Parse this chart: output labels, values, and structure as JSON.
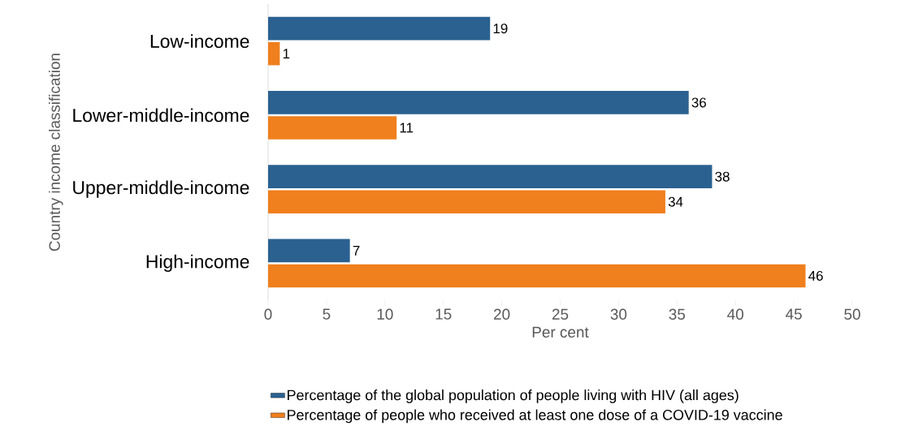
{
  "chart_data": {
    "type": "bar",
    "orientation": "horizontal",
    "ylabel": "Country income classification",
    "xlabel": "Per cent",
    "categories": [
      "Low-income",
      "Lower-middle-income",
      "Upper-middle-income",
      "High-income"
    ],
    "series": [
      {
        "name": "Percentage of the global population of people living with HIV (all ages)",
        "color": "#2a6190",
        "values": [
          19,
          36,
          38,
          7
        ]
      },
      {
        "name": "Percentage of people who received at least one dose of a COVID-19 vaccine",
        "color": "#f07f1d",
        "values": [
          1,
          11,
          34,
          46
        ]
      }
    ],
    "xlim": [
      0,
      50
    ],
    "xticks": [
      0,
      5,
      10,
      15,
      20,
      25,
      30,
      35,
      40,
      45,
      50
    ],
    "data_labels": true,
    "legend": "bottom",
    "grid": false
  }
}
